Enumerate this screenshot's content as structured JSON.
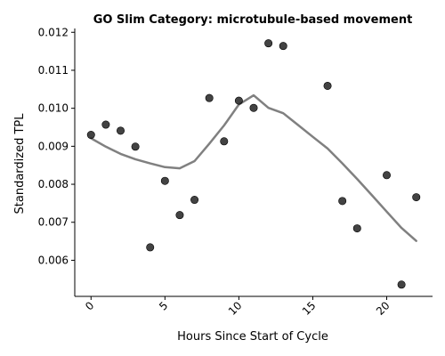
{
  "chart_data": {
    "type": "scatter",
    "title": "GO Slim Category: microtubule-based movement",
    "xlabel": "Hours Since Start of Cycle",
    "ylabel": "Standardized TPL",
    "xlim": [
      -1.1,
      23.1
    ],
    "ylim": [
      0.00505,
      0.0121
    ],
    "x_ticks": [
      0,
      5,
      10,
      15,
      20
    ],
    "x_tick_labels": [
      "0",
      "5",
      "10",
      "15",
      "20"
    ],
    "y_ticks": [
      0.006,
      0.007,
      0.008,
      0.009,
      0.01,
      0.011,
      0.012
    ],
    "y_tick_labels": [
      "0.006",
      "0.007",
      "0.008",
      "0.009",
      "0.010",
      "0.011",
      "0.012"
    ],
    "grid": false,
    "colors": {
      "points": "#222222",
      "trend": "#808080",
      "axis": "#000000"
    },
    "series": [
      {
        "kind": "points",
        "x": [
          0,
          1,
          2,
          3,
          4,
          5,
          6,
          7,
          8,
          9,
          10,
          11,
          12,
          13,
          16,
          17,
          18,
          20,
          21,
          22
        ],
        "y": [
          0.0093,
          0.00957,
          0.00941,
          0.00899,
          0.00634,
          0.00809,
          0.00719,
          0.00759,
          0.01027,
          0.00913,
          0.0102,
          0.01001,
          0.01171,
          0.01164,
          0.01059,
          0.00756,
          0.00684,
          0.00824,
          0.00536,
          0.00766
        ]
      },
      {
        "kind": "trend",
        "x": [
          0,
          1,
          2,
          3,
          4,
          5,
          6,
          7,
          8,
          9,
          10,
          11,
          12,
          13,
          14,
          15,
          16,
          17,
          18,
          19,
          20,
          21,
          22
        ],
        "y": [
          0.00921,
          0.00899,
          0.0088,
          0.00866,
          0.00855,
          0.00845,
          0.00842,
          0.00861,
          0.00907,
          0.00955,
          0.0101,
          0.01034,
          0.01001,
          0.00987,
          0.00956,
          0.00925,
          0.00894,
          0.00855,
          0.00814,
          0.00771,
          0.00728,
          0.00685,
          0.00651
        ]
      }
    ]
  }
}
